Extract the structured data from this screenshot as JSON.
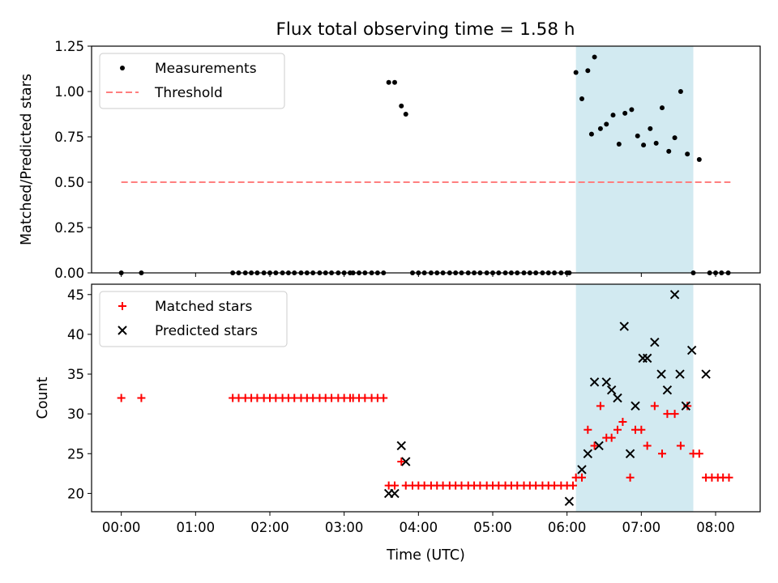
{
  "figure": {
    "title": "Flux total observing time = 1.58 h"
  },
  "chart_data": [
    {
      "type": "scatter",
      "ylabel": "Matched/Predicted stars",
      "xlim": [
        -0.4,
        8.6
      ],
      "ylim": [
        0,
        1.25
      ],
      "yticks": [
        0.0,
        0.25,
        0.5,
        0.75,
        1.0,
        1.25
      ],
      "ytick_labels": [
        "0.00",
        "0.25",
        "0.50",
        "0.75",
        "1.00",
        "1.25"
      ],
      "grid": false,
      "legend": "upper-left",
      "highlight": {
        "x_start": 6.12,
        "x_end": 7.7,
        "color": "#add8e6"
      },
      "series": [
        {
          "name": "Measurements",
          "marker": "dot",
          "color": "#000000",
          "points": [
            [
              0.0,
              0
            ],
            [
              0.27,
              0
            ],
            [
              1.5,
              0
            ],
            [
              1.58,
              0
            ],
            [
              1.67,
              0
            ],
            [
              1.75,
              0
            ],
            [
              1.83,
              0
            ],
            [
              1.92,
              0
            ],
            [
              2.0,
              0
            ],
            [
              2.08,
              0
            ],
            [
              2.17,
              0
            ],
            [
              2.25,
              0
            ],
            [
              2.33,
              0
            ],
            [
              2.42,
              0
            ],
            [
              2.5,
              0
            ],
            [
              2.58,
              0
            ],
            [
              2.67,
              0
            ],
            [
              2.75,
              0
            ],
            [
              2.83,
              0
            ],
            [
              2.92,
              0
            ],
            [
              3.0,
              0
            ],
            [
              3.08,
              0
            ],
            [
              3.12,
              0
            ],
            [
              3.2,
              0
            ],
            [
              3.28,
              0
            ],
            [
              3.37,
              0
            ],
            [
              3.45,
              0
            ],
            [
              3.53,
              0
            ],
            [
              3.6,
              1.05
            ],
            [
              3.68,
              1.05
            ],
            [
              3.77,
              0.92
            ],
            [
              3.83,
              0.875
            ],
            [
              3.92,
              0
            ],
            [
              4.0,
              0
            ],
            [
              4.08,
              0
            ],
            [
              4.17,
              0
            ],
            [
              4.25,
              0
            ],
            [
              4.33,
              0
            ],
            [
              4.42,
              0
            ],
            [
              4.5,
              0
            ],
            [
              4.58,
              0
            ],
            [
              4.67,
              0
            ],
            [
              4.75,
              0
            ],
            [
              4.83,
              0
            ],
            [
              4.92,
              0
            ],
            [
              5.0,
              0
            ],
            [
              5.08,
              0
            ],
            [
              5.17,
              0
            ],
            [
              5.25,
              0
            ],
            [
              5.33,
              0
            ],
            [
              5.42,
              0
            ],
            [
              5.5,
              0
            ],
            [
              5.58,
              0
            ],
            [
              5.67,
              0
            ],
            [
              5.75,
              0
            ],
            [
              5.83,
              0
            ],
            [
              5.92,
              0
            ],
            [
              6.0,
              0
            ],
            [
              6.03,
              0
            ],
            [
              6.12,
              1.105
            ],
            [
              6.2,
              0.96
            ],
            [
              6.28,
              1.115
            ],
            [
              6.37,
              1.19
            ],
            [
              6.33,
              0.765
            ],
            [
              6.45,
              0.795
            ],
            [
              6.53,
              0.82
            ],
            [
              6.62,
              0.87
            ],
            [
              6.7,
              0.71
            ],
            [
              6.78,
              0.88
            ],
            [
              6.87,
              0.9
            ],
            [
              6.95,
              0.755
            ],
            [
              7.03,
              0.705
            ],
            [
              7.12,
              0.795
            ],
            [
              7.2,
              0.715
            ],
            [
              7.28,
              0.91
            ],
            [
              7.37,
              0.67
            ],
            [
              7.45,
              0.745
            ],
            [
              7.53,
              1.0
            ],
            [
              7.62,
              0.655
            ],
            [
              7.78,
              0.625
            ],
            [
              7.7,
              0
            ],
            [
              7.92,
              0
            ],
            [
              8.0,
              0
            ],
            [
              8.08,
              0
            ],
            [
              8.17,
              0
            ]
          ]
        },
        {
          "name": "Threshold",
          "style": "dashed-line",
          "color": "#ff7f7f",
          "points": [
            [
              0.0,
              0.5
            ],
            [
              8.2,
              0.5
            ]
          ]
        }
      ]
    },
    {
      "type": "scatter",
      "xlabel": "Time (UTC)",
      "ylabel": "Count",
      "xlim": [
        -0.4,
        8.6
      ],
      "ylim": [
        17.7,
        46.3
      ],
      "yticks": [
        20,
        25,
        30,
        35,
        40,
        45
      ],
      "ytick_labels": [
        "20",
        "25",
        "30",
        "35",
        "40",
        "45"
      ],
      "xticks": [
        0,
        1,
        2,
        3,
        4,
        5,
        6,
        7,
        8
      ],
      "xtick_labels": [
        "00:00",
        "01:00",
        "02:00",
        "03:00",
        "04:00",
        "05:00",
        "06:00",
        "07:00",
        "08:00"
      ],
      "grid": false,
      "legend": "upper-left",
      "highlight": {
        "x_start": 6.12,
        "x_end": 7.7,
        "color": "#add8e6"
      },
      "series": [
        {
          "name": "Matched stars",
          "marker": "plus",
          "color": "#ff0000",
          "points": [
            [
              0.0,
              32
            ],
            [
              0.27,
              32
            ],
            [
              1.5,
              32
            ],
            [
              1.58,
              32
            ],
            [
              1.67,
              32
            ],
            [
              1.75,
              32
            ],
            [
              1.83,
              32
            ],
            [
              1.92,
              32
            ],
            [
              2.0,
              32
            ],
            [
              2.08,
              32
            ],
            [
              2.17,
              32
            ],
            [
              2.25,
              32
            ],
            [
              2.33,
              32
            ],
            [
              2.42,
              32
            ],
            [
              2.5,
              32
            ],
            [
              2.58,
              32
            ],
            [
              2.67,
              32
            ],
            [
              2.75,
              32
            ],
            [
              2.83,
              32
            ],
            [
              2.92,
              32
            ],
            [
              3.0,
              32
            ],
            [
              3.08,
              32
            ],
            [
              3.12,
              32
            ],
            [
              3.2,
              32
            ],
            [
              3.28,
              32
            ],
            [
              3.37,
              32
            ],
            [
              3.45,
              32
            ],
            [
              3.53,
              32
            ],
            [
              3.6,
              21
            ],
            [
              3.68,
              21
            ],
            [
              3.77,
              24
            ],
            [
              3.83,
              21
            ],
            [
              3.92,
              21
            ],
            [
              4.0,
              21
            ],
            [
              4.08,
              21
            ],
            [
              4.17,
              21
            ],
            [
              4.25,
              21
            ],
            [
              4.33,
              21
            ],
            [
              4.42,
              21
            ],
            [
              4.5,
              21
            ],
            [
              4.58,
              21
            ],
            [
              4.67,
              21
            ],
            [
              4.75,
              21
            ],
            [
              4.83,
              21
            ],
            [
              4.92,
              21
            ],
            [
              5.0,
              21
            ],
            [
              5.08,
              21
            ],
            [
              5.17,
              21
            ],
            [
              5.25,
              21
            ],
            [
              5.33,
              21
            ],
            [
              5.42,
              21
            ],
            [
              5.5,
              21
            ],
            [
              5.58,
              21
            ],
            [
              5.67,
              21
            ],
            [
              5.75,
              21
            ],
            [
              5.83,
              21
            ],
            [
              5.92,
              21
            ],
            [
              6.0,
              21
            ],
            [
              6.08,
              21
            ],
            [
              6.12,
              22
            ],
            [
              6.2,
              22
            ],
            [
              6.28,
              28
            ],
            [
              6.37,
              26
            ],
            [
              6.45,
              31
            ],
            [
              6.53,
              27
            ],
            [
              6.6,
              27
            ],
            [
              6.68,
              28
            ],
            [
              6.75,
              29
            ],
            [
              6.85,
              22
            ],
            [
              6.92,
              28
            ],
            [
              7.0,
              28
            ],
            [
              7.08,
              26
            ],
            [
              7.18,
              31
            ],
            [
              7.28,
              25
            ],
            [
              7.35,
              30
            ],
            [
              7.45,
              30
            ],
            [
              7.53,
              26
            ],
            [
              7.62,
              31
            ],
            [
              7.7,
              25
            ],
            [
              7.78,
              25
            ],
            [
              7.87,
              22
            ],
            [
              7.95,
              22
            ],
            [
              8.03,
              22
            ],
            [
              8.1,
              22
            ],
            [
              8.18,
              22
            ]
          ]
        },
        {
          "name": "Predicted stars",
          "marker": "x",
          "color": "#000000",
          "points": [
            [
              3.6,
              20
            ],
            [
              3.68,
              20
            ],
            [
              3.77,
              26
            ],
            [
              3.83,
              24
            ],
            [
              6.03,
              19
            ],
            [
              6.2,
              23
            ],
            [
              6.28,
              25
            ],
            [
              6.37,
              34
            ],
            [
              6.43,
              26
            ],
            [
              6.53,
              34
            ],
            [
              6.6,
              33
            ],
            [
              6.68,
              32
            ],
            [
              6.77,
              41
            ],
            [
              6.85,
              25
            ],
            [
              6.92,
              31
            ],
            [
              7.02,
              37
            ],
            [
              7.08,
              37
            ],
            [
              7.18,
              39
            ],
            [
              7.27,
              35
            ],
            [
              7.35,
              33
            ],
            [
              7.45,
              45
            ],
            [
              7.52,
              35
            ],
            [
              7.6,
              31
            ],
            [
              7.68,
              38
            ],
            [
              7.87,
              35
            ]
          ]
        }
      ]
    }
  ]
}
